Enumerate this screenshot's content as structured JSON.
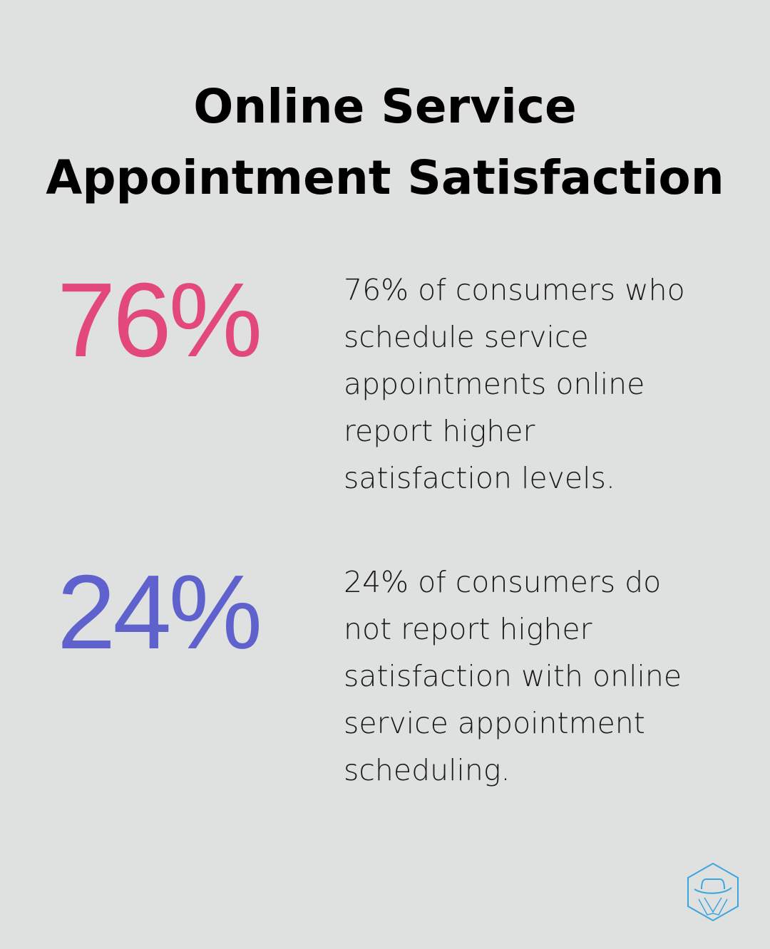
{
  "title": {
    "lines": [
      "Online Service",
      "Appointment Satisfaction"
    ]
  },
  "stats": [
    {
      "value": "76%",
      "color": "#e3487a",
      "description_lines": [
        "76% of consumers who",
        "schedule service",
        "appointments online",
        "report higher",
        "satisfaction levels."
      ]
    },
    {
      "value": "24%",
      "color": "#5f62cc",
      "description_lines": [
        "24% of consumers do",
        "not report higher",
        "satisfaction with online",
        "service appointment",
        "scheduling."
      ]
    }
  ],
  "logo": {
    "icon": "spy-hat-hexagon-icon",
    "color": "#3aa6dc"
  }
}
